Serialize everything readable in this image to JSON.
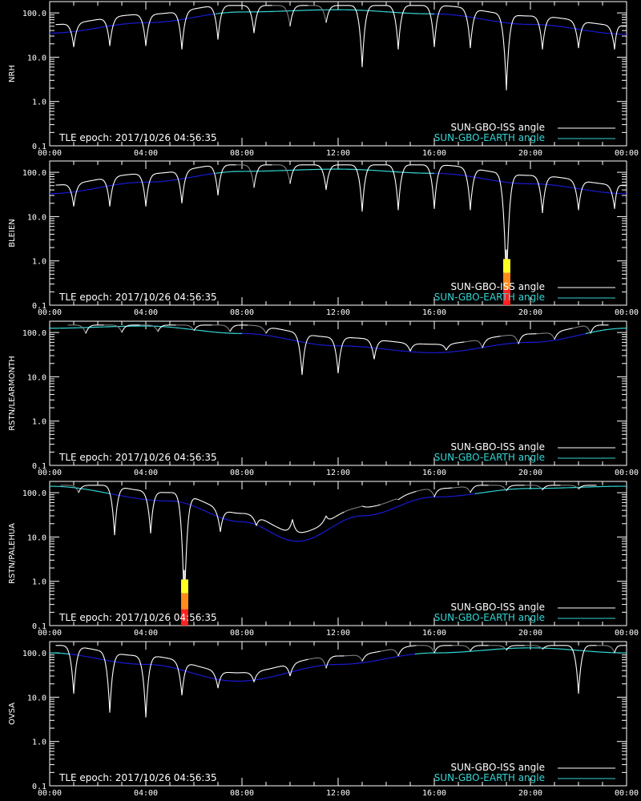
{
  "colors": {
    "background": "#000000",
    "axes": "#ffffff",
    "iss_sunlit": "#ffffff",
    "iss_shadow": "#808080",
    "earth_low": "#1a1ad6",
    "earth_high": "#33d6d6",
    "legend_iss": "#ffffff",
    "legend_earth": "#33d6d6",
    "bar_yellow": "#ffff22",
    "bar_orange": "#ff8c1a",
    "bar_red": "#ff2020"
  },
  "chart_data": [
    {
      "type": "line",
      "ylabel": "NRH",
      "yscale": "log",
      "ylim": [
        0.1,
        180
      ],
      "yticks": [
        "0.1",
        "1.0",
        "10.0",
        "100.0"
      ],
      "xlim": [
        "00:00",
        "00:00"
      ],
      "xticks": [
        "00:00",
        "04:00",
        "08:00",
        "12:00",
        "16:00",
        "20:00",
        "00:00"
      ],
      "annotation": "TLE epoch: 2017/10/26 04:56:35",
      "series": [
        {
          "name": "SUN-GBO-ISS angle",
          "dips": [
            {
              "t": 1.0,
              "v": 17
            },
            {
              "t": 2.5,
              "v": 18
            },
            {
              "t": 4.0,
              "v": 18
            },
            {
              "t": 5.5,
              "v": 15
            },
            {
              "t": 7.0,
              "v": 25
            },
            {
              "t": 8.5,
              "v": 35
            },
            {
              "t": 10.0,
              "v": 50
            },
            {
              "t": 11.5,
              "v": 60
            },
            {
              "t": 13.0,
              "v": 6
            },
            {
              "t": 14.5,
              "v": 15
            },
            {
              "t": 16.0,
              "v": 17
            },
            {
              "t": 17.5,
              "v": 16
            },
            {
              "t": 19.0,
              "v": 1.8
            },
            {
              "t": 20.5,
              "v": 15
            },
            {
              "t": 22.0,
              "v": 16
            },
            {
              "t": 23.5,
              "v": 15
            }
          ]
        },
        {
          "name": "SUN-GBO-EARTH angle",
          "points": [
            {
              "t": 0,
              "v": 35
            },
            {
              "t": 4,
              "v": 60
            },
            {
              "t": 8,
              "v": 105
            },
            {
              "t": 12,
              "v": 118
            },
            {
              "t": 16,
              "v": 95
            },
            {
              "t": 20,
              "v": 55
            },
            {
              "t": 24,
              "v": 33
            }
          ]
        }
      ],
      "interference": null
    },
    {
      "type": "line",
      "ylabel": "BLEIEN",
      "yscale": "log",
      "ylim": [
        0.1,
        180
      ],
      "yticks": [
        "0.1",
        "1.0",
        "10.0",
        "100.0"
      ],
      "xlim": [
        "00:00",
        "00:00"
      ],
      "xticks": [
        "00:00",
        "04:00",
        "08:00",
        "12:00",
        "16:00",
        "20:00",
        "00:00"
      ],
      "annotation": "TLE epoch: 2017/10/26 04:56:35",
      "series": [
        {
          "name": "SUN-GBO-ISS angle",
          "dips": [
            {
              "t": 1.0,
              "v": 17
            },
            {
              "t": 2.5,
              "v": 17
            },
            {
              "t": 4.0,
              "v": 17
            },
            {
              "t": 5.5,
              "v": 20
            },
            {
              "t": 7.0,
              "v": 30
            },
            {
              "t": 8.5,
              "v": 45
            },
            {
              "t": 10.0,
              "v": 55
            },
            {
              "t": 11.5,
              "v": 40
            },
            {
              "t": 13.0,
              "v": 13
            },
            {
              "t": 14.5,
              "v": 14
            },
            {
              "t": 16.0,
              "v": 15
            },
            {
              "t": 17.5,
              "v": 14
            },
            {
              "t": 19.0,
              "v": 0.2
            },
            {
              "t": 20.5,
              "v": 12
            },
            {
              "t": 22.0,
              "v": 14
            },
            {
              "t": 23.5,
              "v": 15
            }
          ]
        },
        {
          "name": "SUN-GBO-EARTH angle",
          "points": [
            {
              "t": 0,
              "v": 33
            },
            {
              "t": 4,
              "v": 60
            },
            {
              "t": 8,
              "v": 105
            },
            {
              "t": 12,
              "v": 118
            },
            {
              "t": 16,
              "v": 95
            },
            {
              "t": 20,
              "v": 55
            },
            {
              "t": 24,
              "v": 33
            }
          ]
        }
      ],
      "interference": {
        "t": 19.0,
        "top": 1.1
      }
    },
    {
      "type": "line",
      "ylabel": "RSTN/LEARMONTH",
      "yscale": "log",
      "ylim": [
        0.1,
        180
      ],
      "yticks": [
        "0.1",
        "1.0",
        "10.0",
        "100.0"
      ],
      "xlim": [
        "00:00",
        "00:00"
      ],
      "xticks": [
        "00:00",
        "04:00",
        "08:00",
        "12:00",
        "16:00",
        "20:00",
        "00:00"
      ],
      "annotation": "TLE epoch: 2017/10/26 04:56:35",
      "series": [
        {
          "name": "SUN-GBO-ISS angle",
          "dips": [
            {
              "t": 1.5,
              "v": 95
            },
            {
              "t": 3.0,
              "v": 100
            },
            {
              "t": 4.5,
              "v": 105
            },
            {
              "t": 6.0,
              "v": 110
            },
            {
              "t": 7.5,
              "v": 105
            },
            {
              "t": 9.0,
              "v": 95
            },
            {
              "t": 10.5,
              "v": 11
            },
            {
              "t": 12.0,
              "v": 12
            },
            {
              "t": 13.5,
              "v": 25
            },
            {
              "t": 15.0,
              "v": 38
            },
            {
              "t": 16.5,
              "v": 40
            },
            {
              "t": 18.0,
              "v": 45
            },
            {
              "t": 19.5,
              "v": 55
            },
            {
              "t": 21.0,
              "v": 70
            },
            {
              "t": 22.5,
              "v": 95
            }
          ]
        },
        {
          "name": "SUN-GBO-EARTH angle",
          "points": [
            {
              "t": 0,
              "v": 125
            },
            {
              "t": 4,
              "v": 140
            },
            {
              "t": 8,
              "v": 95
            },
            {
              "t": 12,
              "v": 50
            },
            {
              "t": 16,
              "v": 35
            },
            {
              "t": 20,
              "v": 60
            },
            {
              "t": 24,
              "v": 125
            }
          ]
        }
      ],
      "interference": null
    },
    {
      "type": "line",
      "ylabel": "RSTN/PALEHUA",
      "yscale": "log",
      "ylim": [
        0.1,
        180
      ],
      "yticks": [
        "0.1",
        "1.0",
        "10.0",
        "100.0"
      ],
      "xlim": [
        "00:00",
        "00:00"
      ],
      "xticks": [
        "00:00",
        "04:00",
        "08:00",
        "12:00",
        "16:00",
        "20:00",
        "00:00"
      ],
      "annotation": "TLE epoch: 2017/10/26 04:56:35",
      "series": [
        {
          "name": "SUN-GBO-ISS angle",
          "dips": [
            {
              "t": 1.2,
              "v": 100
            },
            {
              "t": 2.7,
              "v": 11
            },
            {
              "t": 4.2,
              "v": 12
            },
            {
              "t": 5.6,
              "v": 0.2
            },
            {
              "t": 7.1,
              "v": 13
            },
            {
              "t": 8.6,
              "v": 18
            },
            {
              "t": 10.1,
              "v": 25
            },
            {
              "t": 11.5,
              "v": 30
            },
            {
              "t": 13.0,
              "v": 50
            },
            {
              "t": 14.5,
              "v": 70
            },
            {
              "t": 16.0,
              "v": 80
            },
            {
              "t": 17.5,
              "v": 100
            },
            {
              "t": 19.0,
              "v": 110
            },
            {
              "t": 20.5,
              "v": 115
            },
            {
              "t": 22.0,
              "v": 120
            }
          ]
        },
        {
          "name": "SUN-GBO-EARTH angle",
          "points": [
            {
              "t": 0,
              "v": 140
            },
            {
              "t": 5,
              "v": 65
            },
            {
              "t": 8,
              "v": 22
            },
            {
              "t": 10.3,
              "v": 8
            },
            {
              "t": 13,
              "v": 30
            },
            {
              "t": 16,
              "v": 80
            },
            {
              "t": 20,
              "v": 125
            },
            {
              "t": 24,
              "v": 140
            }
          ]
        }
      ],
      "interference": {
        "t": 5.6,
        "top": 1.1
      }
    },
    {
      "type": "line",
      "ylabel": "OVSA",
      "yscale": "log",
      "ylim": [
        0.1,
        180
      ],
      "yticks": [
        "0.1",
        "1.0",
        "10.0",
        "100.0"
      ],
      "xlim": [
        "00:00",
        "00:00"
      ],
      "xticks": [
        "00:00",
        "04:00",
        "08:00",
        "12:00",
        "16:00",
        "20:00",
        "00:00"
      ],
      "annotation": "TLE epoch: 2017/10/26 04:56:35",
      "series": [
        {
          "name": "SUN-GBO-ISS angle",
          "dips": [
            {
              "t": 1.0,
              "v": 12
            },
            {
              "t": 2.5,
              "v": 4.5
            },
            {
              "t": 4.0,
              "v": 3.5
            },
            {
              "t": 5.5,
              "v": 11
            },
            {
              "t": 7.0,
              "v": 16
            },
            {
              "t": 8.5,
              "v": 22
            },
            {
              "t": 10.0,
              "v": 30
            },
            {
              "t": 11.5,
              "v": 45
            },
            {
              "t": 13.0,
              "v": 65
            },
            {
              "t": 14.5,
              "v": 85
            },
            {
              "t": 16.0,
              "v": 100
            },
            {
              "t": 17.5,
              "v": 110
            },
            {
              "t": 19.0,
              "v": 115
            },
            {
              "t": 20.5,
              "v": 120
            },
            {
              "t": 22.0,
              "v": 12
            },
            {
              "t": 23.5,
              "v": 100
            }
          ]
        },
        {
          "name": "SUN-GBO-EARTH angle",
          "points": [
            {
              "t": 0,
              "v": 100
            },
            {
              "t": 4,
              "v": 55
            },
            {
              "t": 7.8,
              "v": 23
            },
            {
              "t": 12,
              "v": 55
            },
            {
              "t": 16,
              "v": 100
            },
            {
              "t": 20,
              "v": 130
            },
            {
              "t": 24,
              "v": 100
            }
          ]
        }
      ],
      "interference": null
    }
  ]
}
